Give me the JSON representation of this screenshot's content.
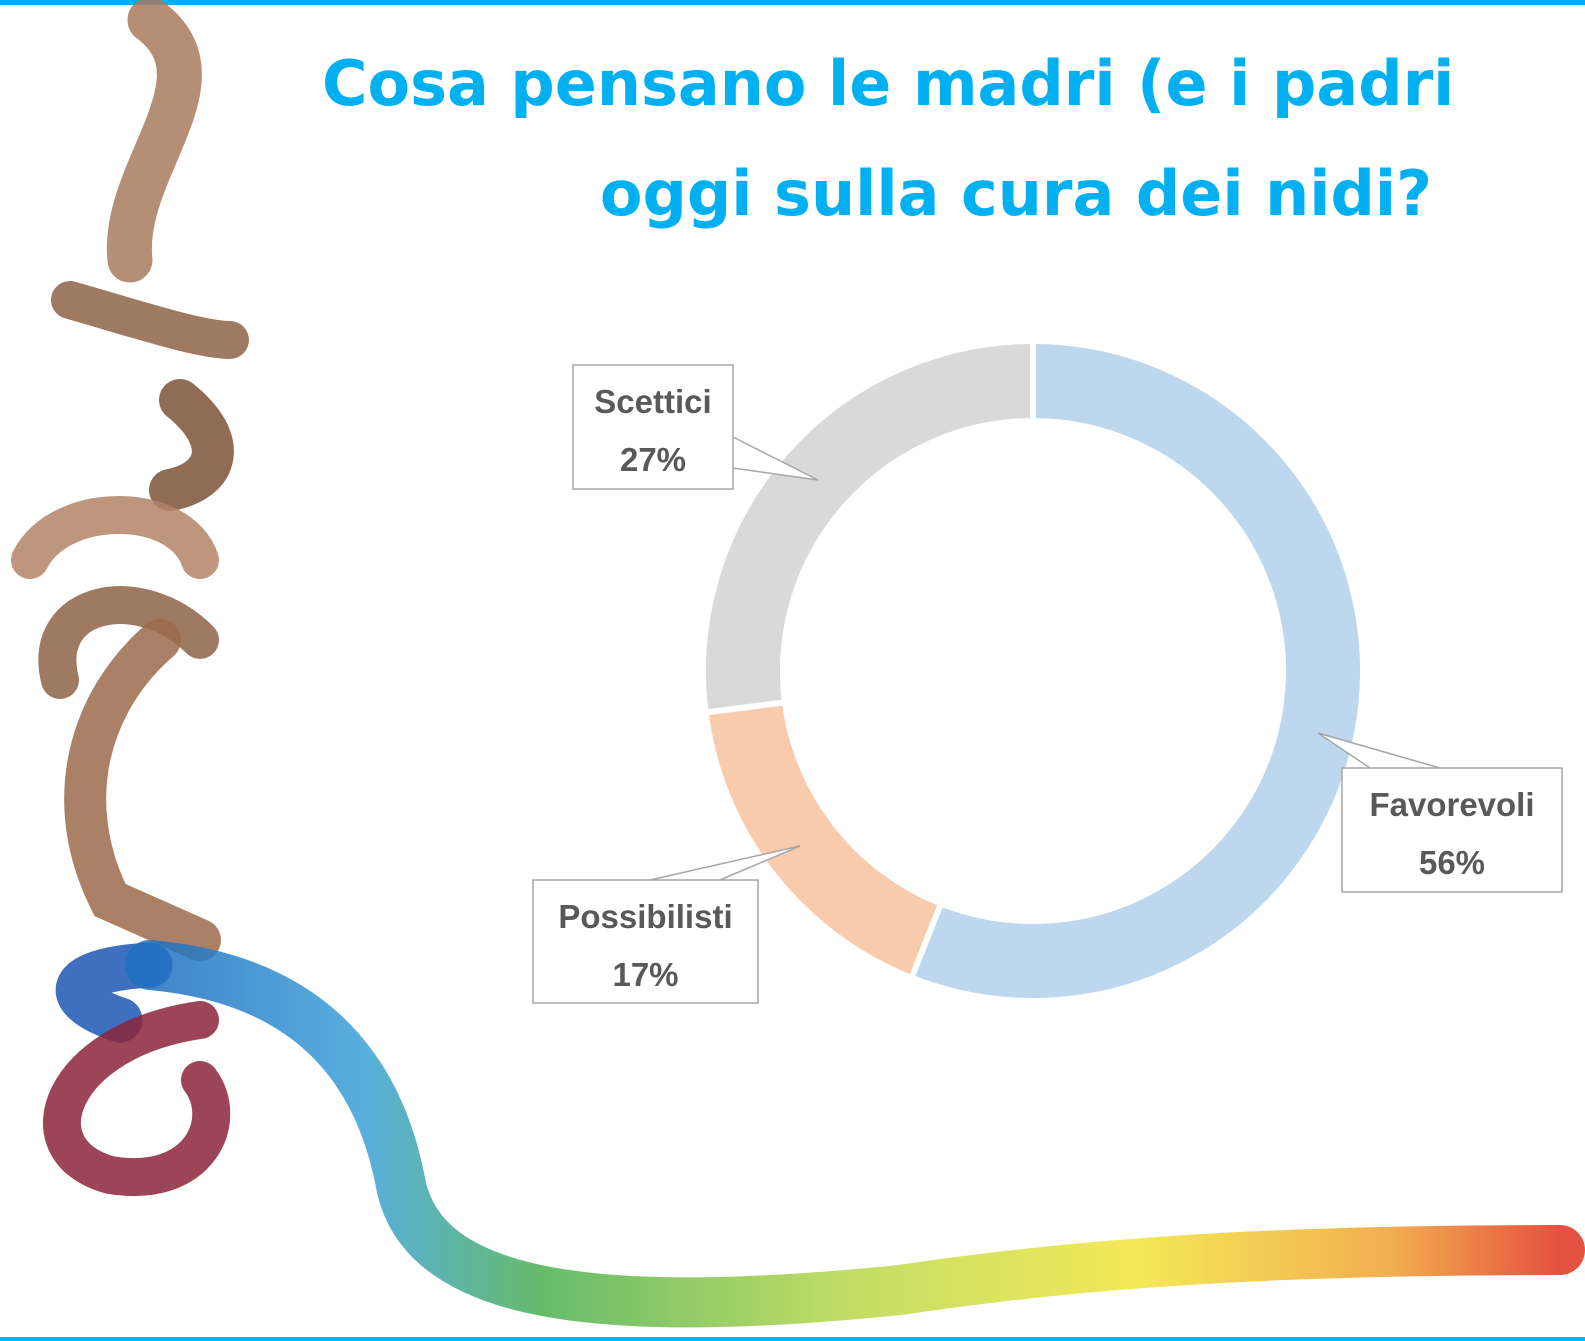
{
  "chart_data": {
    "type": "donut",
    "title_lines": [
      "Cosa pensano le madri (e i padri",
      "oggi sulla cura dei nidi?"
    ],
    "categories": [
      "Favorevoli",
      "Possibilisti",
      "Scettici"
    ],
    "values": [
      56,
      17,
      27
    ],
    "value_labels": [
      "56%",
      "17%",
      "27%"
    ],
    "colors": [
      "#bdd7ee",
      "#f8cbad",
      "#d9d9d9"
    ]
  }
}
